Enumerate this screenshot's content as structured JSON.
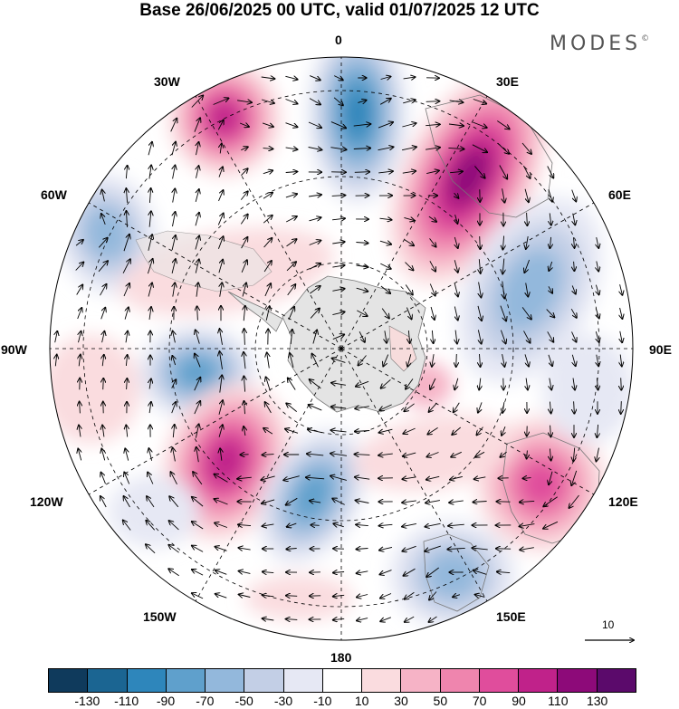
{
  "title": "Base 26/06/2025 00 UTC, valid 01/07/2025 12 UTC",
  "logo_text": "MODES",
  "logo_mark": "©",
  "longitude_labels": [
    "0",
    "30E",
    "60E",
    "90E",
    "120E",
    "150E",
    "180",
    "150W",
    "120W",
    "90W",
    "60W",
    "30W"
  ],
  "reference_vector_label": "10",
  "colorbar": {
    "ticks": [
      "-130",
      "-110",
      "-90",
      "-70",
      "-50",
      "-30",
      "-10",
      "10",
      "30",
      "50",
      "70",
      "90",
      "110",
      "130"
    ],
    "colors": [
      "#0f3a5c",
      "#1b6592",
      "#2e86bb",
      "#5fa0cc",
      "#93b8dc",
      "#c3cfe6",
      "#e6e8f4",
      "#ffffff",
      "#fadcdf",
      "#f6b3c6",
      "#ef85ae",
      "#e04d9c",
      "#c0228a",
      "#8d0a79",
      "#5b0a6b"
    ]
  },
  "colors": {
    "land": "#e4e4e4",
    "coast": "#777777",
    "grid": "#000000"
  }
}
